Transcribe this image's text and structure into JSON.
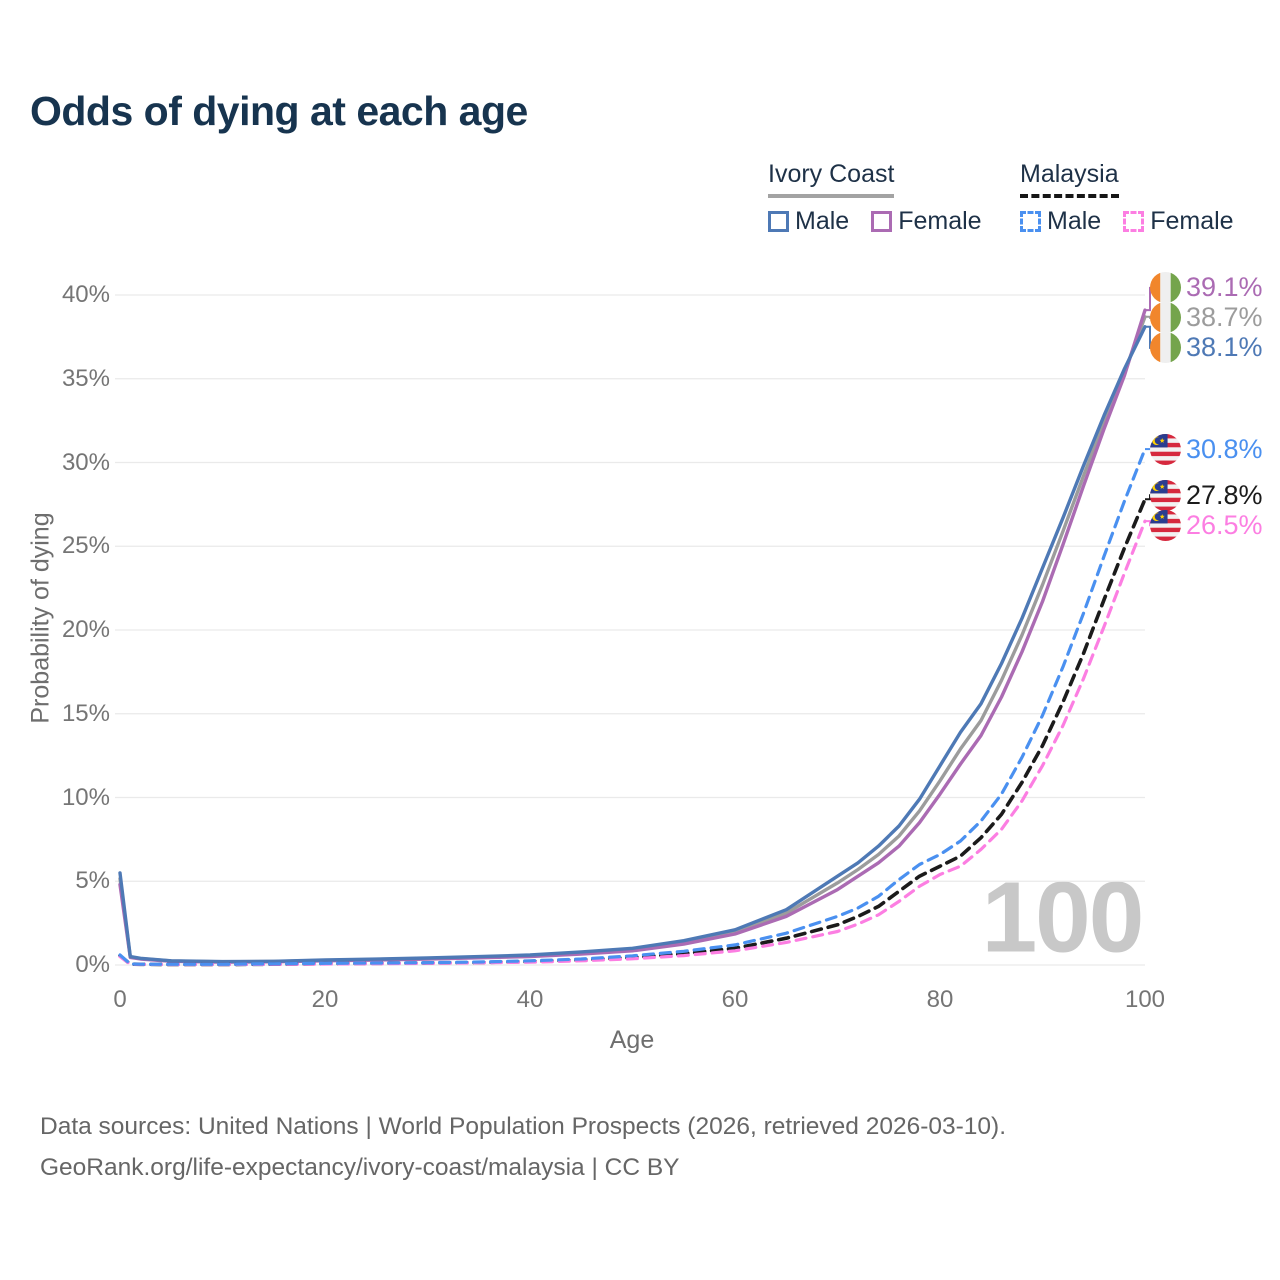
{
  "header": {
    "title": "Odds of dying at each age"
  },
  "legend": {
    "groups": [
      {
        "country": "Ivory Coast",
        "line_style": "solid",
        "underline_color": "#a3a3a3",
        "items": [
          {
            "label": "Male",
            "color": "#4e79b5"
          },
          {
            "label": "Female",
            "color": "#ab6bb3"
          }
        ]
      },
      {
        "country": "Malaysia",
        "line_style": "dashed",
        "underline_color": "#161616",
        "items": [
          {
            "label": "Male",
            "color": "#4a90f0"
          },
          {
            "label": "Female",
            "color": "#fc7ee2"
          }
        ]
      }
    ]
  },
  "chart_data": {
    "type": "line",
    "title": "Odds of dying at each age",
    "xlabel": "Age",
    "ylabel": "Probability of dying",
    "xlim": [
      0,
      100
    ],
    "ylim": [
      0,
      40
    ],
    "x_ticks": [
      0,
      20,
      40,
      60,
      80,
      100
    ],
    "y_ticks": [
      "0%",
      "5%",
      "10%",
      "15%",
      "20%",
      "25%",
      "30%",
      "35%",
      "40%"
    ],
    "grid": "horizontal",
    "watermark": "100",
    "ages": [
      0,
      1,
      2,
      5,
      10,
      15,
      20,
      25,
      30,
      35,
      40,
      45,
      50,
      55,
      60,
      65,
      70,
      72,
      74,
      76,
      78,
      80,
      82,
      84,
      86,
      88,
      90,
      92,
      94,
      96,
      98,
      100
    ],
    "series": [
      {
        "id": "ivory-coast-both",
        "name": "Ivory Coast",
        "sex": "both",
        "flag": "ci",
        "color": "#9c9c9c",
        "dash": false,
        "end_label": "38.7%",
        "values": [
          5.15,
          0.48,
          0.38,
          0.24,
          0.19,
          0.21,
          0.28,
          0.33,
          0.39,
          0.47,
          0.56,
          0.72,
          0.93,
          1.35,
          2.0,
          3.1,
          4.9,
          5.7,
          6.6,
          7.7,
          9.2,
          11.0,
          12.9,
          14.6,
          17.0,
          19.7,
          22.7,
          25.9,
          29.2,
          32.4,
          35.4,
          38.7
        ]
      },
      {
        "id": "ivory-coast-female",
        "name": "Ivory Coast Female",
        "sex": "female",
        "flag": "ci",
        "color": "#ab6bb3",
        "dash": false,
        "end_label": "39.1%",
        "values": [
          4.8,
          0.45,
          0.36,
          0.22,
          0.17,
          0.19,
          0.25,
          0.3,
          0.36,
          0.43,
          0.51,
          0.65,
          0.85,
          1.25,
          1.85,
          2.9,
          4.5,
          5.3,
          6.1,
          7.1,
          8.5,
          10.2,
          12.0,
          13.7,
          16.0,
          18.7,
          21.7,
          25.1,
          28.6,
          32.0,
          35.2,
          39.1
        ]
      },
      {
        "id": "ivory-coast-male",
        "name": "Ivory Coast Male",
        "sex": "male",
        "flag": "ci",
        "color": "#4e79b5",
        "dash": false,
        "end_label": "38.1%",
        "values": [
          5.5,
          0.5,
          0.4,
          0.25,
          0.2,
          0.22,
          0.3,
          0.35,
          0.42,
          0.5,
          0.6,
          0.78,
          1.0,
          1.45,
          2.1,
          3.3,
          5.3,
          6.1,
          7.1,
          8.3,
          9.9,
          11.9,
          13.9,
          15.6,
          18.0,
          20.7,
          23.7,
          26.7,
          29.8,
          32.8,
          35.6,
          38.1
        ]
      },
      {
        "id": "malaysia-both",
        "name": "Malaysia",
        "sex": "both",
        "flag": "my",
        "color": "#1b1b1b",
        "dash": true,
        "end_label": "27.8%",
        "values": [
          0.55,
          0.05,
          0.04,
          0.03,
          0.03,
          0.05,
          0.08,
          0.1,
          0.12,
          0.15,
          0.2,
          0.3,
          0.45,
          0.68,
          1.0,
          1.6,
          2.4,
          2.9,
          3.5,
          4.4,
          5.3,
          5.9,
          6.5,
          7.6,
          9.0,
          10.9,
          13.1,
          15.7,
          18.6,
          21.8,
          24.9,
          27.8
        ]
      },
      {
        "id": "malaysia-female",
        "name": "Malaysia Female",
        "sex": "female",
        "flag": "my",
        "color": "#fc7ee2",
        "dash": true,
        "end_label": "26.5%",
        "values": [
          0.5,
          0.04,
          0.04,
          0.03,
          0.03,
          0.04,
          0.06,
          0.08,
          0.1,
          0.13,
          0.17,
          0.25,
          0.37,
          0.56,
          0.85,
          1.35,
          2.0,
          2.45,
          3.0,
          3.8,
          4.7,
          5.4,
          5.9,
          6.9,
          8.1,
          9.8,
          11.9,
          14.3,
          17.1,
          20.2,
          23.4,
          26.5
        ]
      },
      {
        "id": "malaysia-male",
        "name": "Malaysia Male",
        "sex": "male",
        "flag": "my",
        "color": "#4a90f0",
        "dash": true,
        "end_label": "30.8%",
        "values": [
          0.6,
          0.06,
          0.05,
          0.04,
          0.04,
          0.07,
          0.1,
          0.12,
          0.14,
          0.18,
          0.25,
          0.36,
          0.55,
          0.82,
          1.2,
          1.9,
          2.9,
          3.4,
          4.1,
          5.1,
          6.0,
          6.6,
          7.4,
          8.6,
          10.2,
          12.4,
          14.9,
          17.8,
          21.0,
          24.4,
          27.7,
          30.8
        ]
      }
    ]
  },
  "flags": {
    "ci": {
      "orange": "#f1862c",
      "white": "#efefef",
      "green": "#74a44c"
    },
    "my": {
      "red": "#d6293e",
      "white": "#f2f2f2",
      "blue": "#2a3d8f",
      "yellow": "#ffd100"
    }
  },
  "footer": {
    "line1": "Data sources: United Nations | World Population Prospects (2026, retrieved 2026-03-10).",
    "line2": "GeoRank.org/life-expectancy/ivory-coast/malaysia | CC BY"
  }
}
